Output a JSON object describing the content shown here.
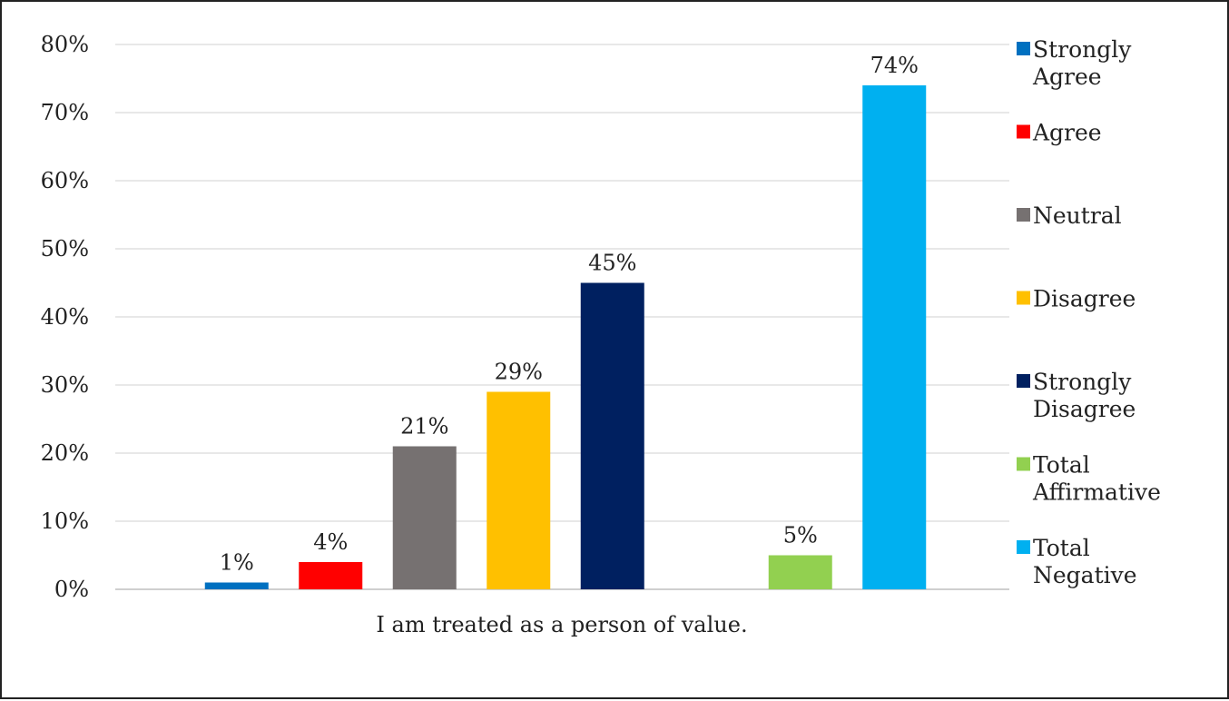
{
  "chart_data": {
    "type": "bar",
    "categories": [
      "I am treated as a person of value."
    ],
    "series": [
      {
        "name": "Strongly Agree",
        "values": [
          1
        ],
        "label": "1%",
        "color": "#0070C0"
      },
      {
        "name": "Agree",
        "values": [
          4
        ],
        "label": "4%",
        "color": "#FF0000"
      },
      {
        "name": "Neutral",
        "values": [
          21
        ],
        "label": "21%",
        "color": "#767171"
      },
      {
        "name": "Disagree",
        "values": [
          29
        ],
        "label": "29%",
        "color": "#FFC000"
      },
      {
        "name": "Strongly Disagree",
        "values": [
          45
        ],
        "label": "45%",
        "color": "#002060"
      },
      {
        "name": "Total Affirmative",
        "values": [
          5
        ],
        "label": "5%",
        "color": "#92D050"
      },
      {
        "name": "Total Negative",
        "values": [
          74
        ],
        "label": "74%",
        "color": "#00B0F0"
      }
    ],
    "ylim": [
      0,
      80
    ],
    "yticks": [
      "0%",
      "10%",
      "20%",
      "30%",
      "40%",
      "50%",
      "60%",
      "70%",
      "80%"
    ],
    "grid": true,
    "legend_position": "right"
  }
}
